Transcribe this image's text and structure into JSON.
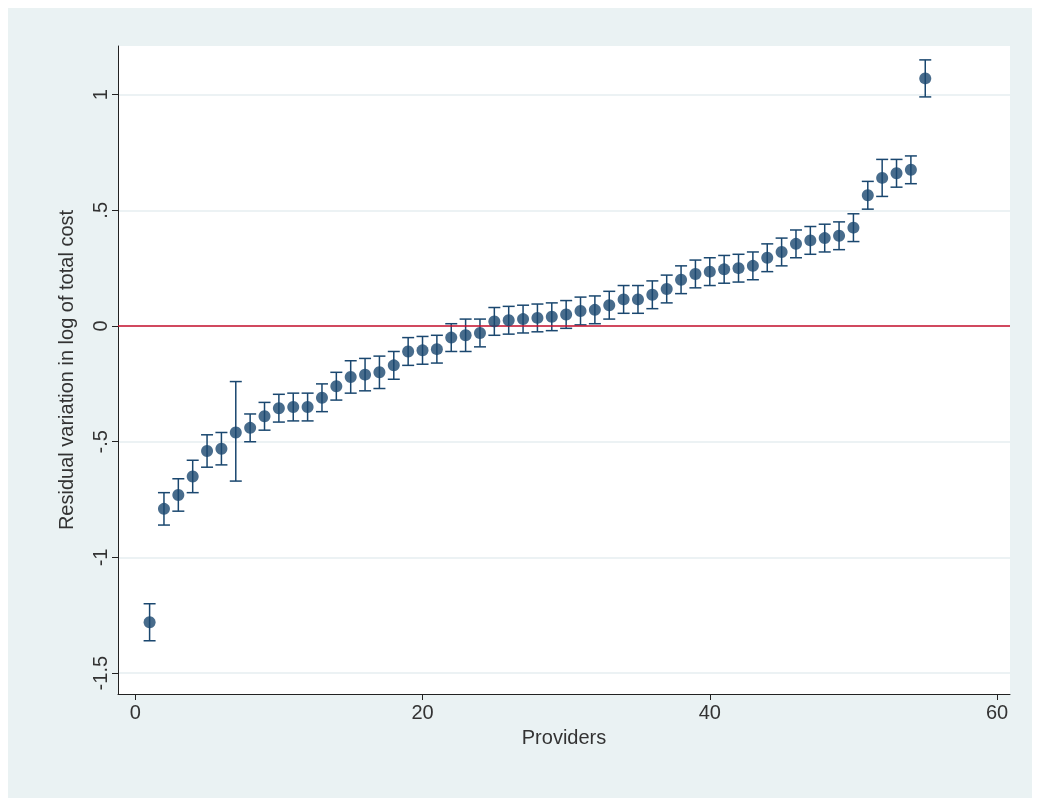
{
  "chart_data": {
    "type": "scatter",
    "xlabel": "Providers",
    "ylabel": "Residual variation in log of total cost",
    "x": [
      1,
      2,
      3,
      4,
      5,
      6,
      7,
      8,
      9,
      10,
      11,
      12,
      13,
      14,
      15,
      16,
      17,
      18,
      19,
      20,
      21,
      22,
      23,
      24,
      25,
      26,
      27,
      28,
      29,
      30,
      31,
      32,
      33,
      34,
      35,
      36,
      37,
      38,
      39,
      40,
      41,
      42,
      43,
      44,
      45,
      46,
      47,
      48,
      49,
      50,
      51,
      52,
      53,
      54,
      55
    ],
    "series": [
      {
        "color": "#1a476f",
        "values": [
          -1.28,
          -0.79,
          -0.73,
          -0.65,
          -0.54,
          -0.53,
          -0.46,
          -0.44,
          -0.39,
          -0.355,
          -0.35,
          -0.35,
          -0.31,
          -0.26,
          -0.22,
          -0.21,
          -0.2,
          -0.17,
          -0.11,
          -0.105,
          -0.1,
          -0.05,
          -0.04,
          -0.03,
          0.02,
          0.025,
          0.03,
          0.035,
          0.04,
          0.05,
          0.065,
          0.07,
          0.09,
          0.115,
          0.115,
          0.135,
          0.16,
          0.2,
          0.225,
          0.235,
          0.245,
          0.25,
          0.26,
          0.295,
          0.32,
          0.355,
          0.37,
          0.38,
          0.39,
          0.425,
          0.565,
          0.64,
          0.66,
          0.675,
          1.07
        ],
        "errors": [
          0.08,
          0.07,
          0.07,
          0.07,
          0.07,
          0.07,
          [
            -0.67,
            -0.24
          ],
          0.06,
          0.06,
          0.06,
          0.06,
          0.06,
          0.06,
          0.06,
          0.07,
          0.07,
          0.07,
          0.06,
          0.06,
          0.06,
          0.06,
          0.06,
          0.07,
          0.06,
          0.06,
          0.06,
          0.06,
          0.06,
          0.06,
          0.06,
          0.06,
          0.06,
          0.06,
          0.06,
          0.06,
          0.06,
          0.06,
          0.06,
          0.06,
          0.06,
          0.06,
          0.06,
          0.06,
          0.06,
          0.06,
          0.06,
          0.06,
          0.06,
          0.06,
          0.06,
          0.06,
          0.08,
          0.06,
          0.06,
          0.08
        ]
      }
    ],
    "xlim": [
      -1.2,
      60.9
    ],
    "ylim": [
      -1.59,
      1.21
    ],
    "xticks": [
      0,
      20,
      40,
      60
    ],
    "yticks": [
      {
        "value": -1.5,
        "label": "-1.5"
      },
      {
        "value": -1,
        "label": "-1"
      },
      {
        "value": -0.5,
        "label": "-.5"
      },
      {
        "value": 0,
        "label": "0"
      },
      {
        "value": 0.5,
        "label": ".5"
      },
      {
        "value": 1,
        "label": "1"
      }
    ],
    "grid": "y",
    "marker": "circle",
    "ref_lines": [
      {
        "axis": "y",
        "value": 0,
        "color": "#c8102e"
      }
    ]
  }
}
